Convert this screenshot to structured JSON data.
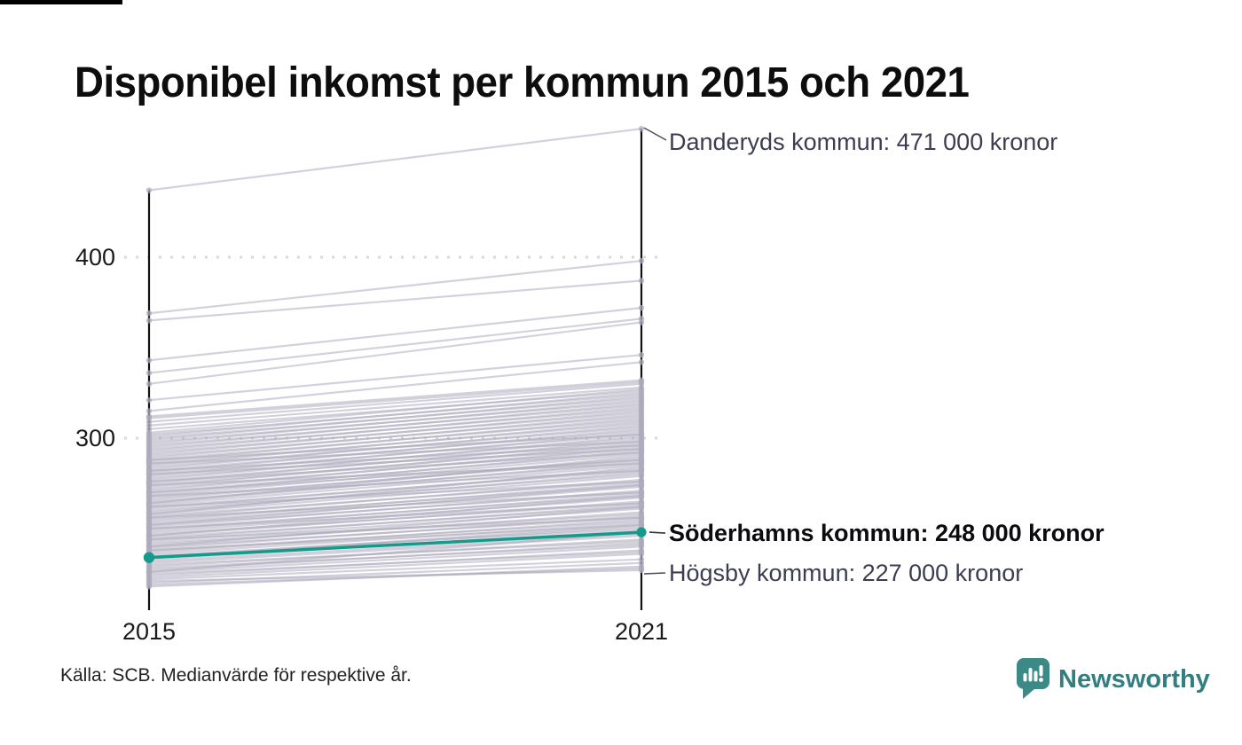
{
  "title": "Disponibel inkomst per kommun 2015 och 2021",
  "chart_data": {
    "type": "line",
    "subtype": "slope",
    "title": "Disponibel inkomst per kommun 2015 och 2021",
    "x_categories": [
      "2015",
      "2021"
    ],
    "y_ticks": [
      "400",
      "300"
    ],
    "y_tick_values": [
      400,
      300
    ],
    "unit": "tusen kronor, medianvärde per kommun",
    "grid": "dotted horizontal",
    "highlight_series": {
      "name": "Söderhamns kommun",
      "values": [
        234,
        248
      ],
      "color": "#149a8b",
      "label": "Söderhamns kommun: 248 000 kronor"
    },
    "annotations": [
      {
        "municipality": "Danderyds kommun",
        "year": 2021,
        "value_thousand_kronor": 471,
        "label": "Danderyds kommun: 471 000 kronor"
      },
      {
        "municipality": "Söderhamns kommun",
        "year": 2021,
        "value_thousand_kronor": 248,
        "label": "Söderhamns kommun: 248 000 kronor"
      },
      {
        "municipality": "Högsby kommun",
        "year": 2021,
        "value_thousand_kronor": 227,
        "label": "Högsby kommun: 227 000 kronor"
      }
    ],
    "named_lines": {
      "danderyd": [
        437,
        471
      ],
      "hogsby": [
        221,
        227
      ]
    },
    "outlier_lines": [
      [
        369,
        398
      ],
      [
        365,
        387
      ],
      [
        343,
        372
      ],
      [
        336,
        366
      ],
      [
        330,
        364
      ],
      [
        321,
        346
      ],
      [
        315,
        342
      ],
      [
        312,
        332
      ]
    ],
    "background_lines": [
      [
        218,
        229
      ],
      [
        219,
        228
      ],
      [
        220,
        231
      ],
      [
        222,
        233
      ],
      [
        223,
        236
      ],
      [
        224,
        238
      ],
      [
        225,
        237
      ],
      [
        226,
        240
      ],
      [
        227,
        242
      ],
      [
        228,
        241
      ],
      [
        229,
        244
      ],
      [
        230,
        243
      ],
      [
        231,
        246
      ],
      [
        232,
        247
      ],
      [
        233,
        249
      ],
      [
        234,
        251
      ],
      [
        235,
        250
      ],
      [
        236,
        253
      ],
      [
        237,
        255
      ],
      [
        238,
        254
      ],
      [
        239,
        257
      ],
      [
        240,
        256
      ],
      [
        241,
        259
      ],
      [
        242,
        258
      ],
      [
        243,
        261
      ],
      [
        244,
        263
      ],
      [
        245,
        262
      ],
      [
        246,
        265
      ],
      [
        247,
        264
      ],
      [
        248,
        267
      ],
      [
        249,
        269
      ],
      [
        250,
        268
      ],
      [
        251,
        271
      ],
      [
        252,
        270
      ],
      [
        253,
        273
      ],
      [
        254,
        275
      ],
      [
        255,
        274
      ],
      [
        256,
        277
      ],
      [
        257,
        276
      ],
      [
        258,
        279
      ],
      [
        259,
        281
      ],
      [
        260,
        280
      ],
      [
        261,
        283
      ],
      [
        262,
        282
      ],
      [
        263,
        285
      ],
      [
        264,
        287
      ],
      [
        265,
        286
      ],
      [
        266,
        289
      ],
      [
        267,
        288
      ],
      [
        268,
        291
      ],
      [
        269,
        293
      ],
      [
        270,
        292
      ],
      [
        271,
        295
      ],
      [
        272,
        294
      ],
      [
        273,
        297
      ],
      [
        274,
        296
      ],
      [
        275,
        299
      ],
      [
        276,
        298
      ],
      [
        277,
        301
      ],
      [
        278,
        300
      ],
      [
        279,
        303
      ],
      [
        280,
        302
      ],
      [
        281,
        305
      ],
      [
        282,
        304
      ],
      [
        283,
        307
      ],
      [
        284,
        306
      ],
      [
        285,
        309
      ],
      [
        286,
        308
      ],
      [
        287,
        311
      ],
      [
        288,
        310
      ],
      [
        289,
        313
      ],
      [
        290,
        312
      ],
      [
        291,
        315
      ],
      [
        292,
        314
      ],
      [
        293,
        317
      ],
      [
        294,
        316
      ],
      [
        295,
        319
      ],
      [
        296,
        318
      ],
      [
        297,
        321
      ],
      [
        298,
        320
      ],
      [
        299,
        323
      ],
      [
        300,
        322
      ],
      [
        301,
        325
      ],
      [
        302,
        324
      ],
      [
        303,
        327
      ],
      [
        305,
        326
      ],
      [
        307,
        328
      ],
      [
        309,
        330
      ],
      [
        311,
        331
      ],
      [
        234,
        252
      ],
      [
        240,
        262
      ],
      [
        246,
        268
      ],
      [
        252,
        274
      ],
      [
        258,
        284
      ],
      [
        264,
        290
      ],
      [
        270,
        288
      ],
      [
        276,
        292
      ],
      [
        282,
        296
      ],
      [
        288,
        302
      ],
      [
        226,
        248
      ],
      [
        238,
        252
      ],
      [
        250,
        264
      ],
      [
        262,
        276
      ],
      [
        274,
        286
      ],
      [
        286,
        298
      ],
      [
        244,
        256
      ],
      [
        256,
        270
      ],
      [
        268,
        282
      ],
      [
        280,
        294
      ]
    ],
    "line_color": "#aeacbe",
    "highlight_color": "#149a8b",
    "grid_color": "#d8d8d8",
    "axis_color": "#111111"
  },
  "footer": {
    "source": "Källa: SCB. Medianvärde för respektive år.",
    "brand": "Newsworthy"
  }
}
